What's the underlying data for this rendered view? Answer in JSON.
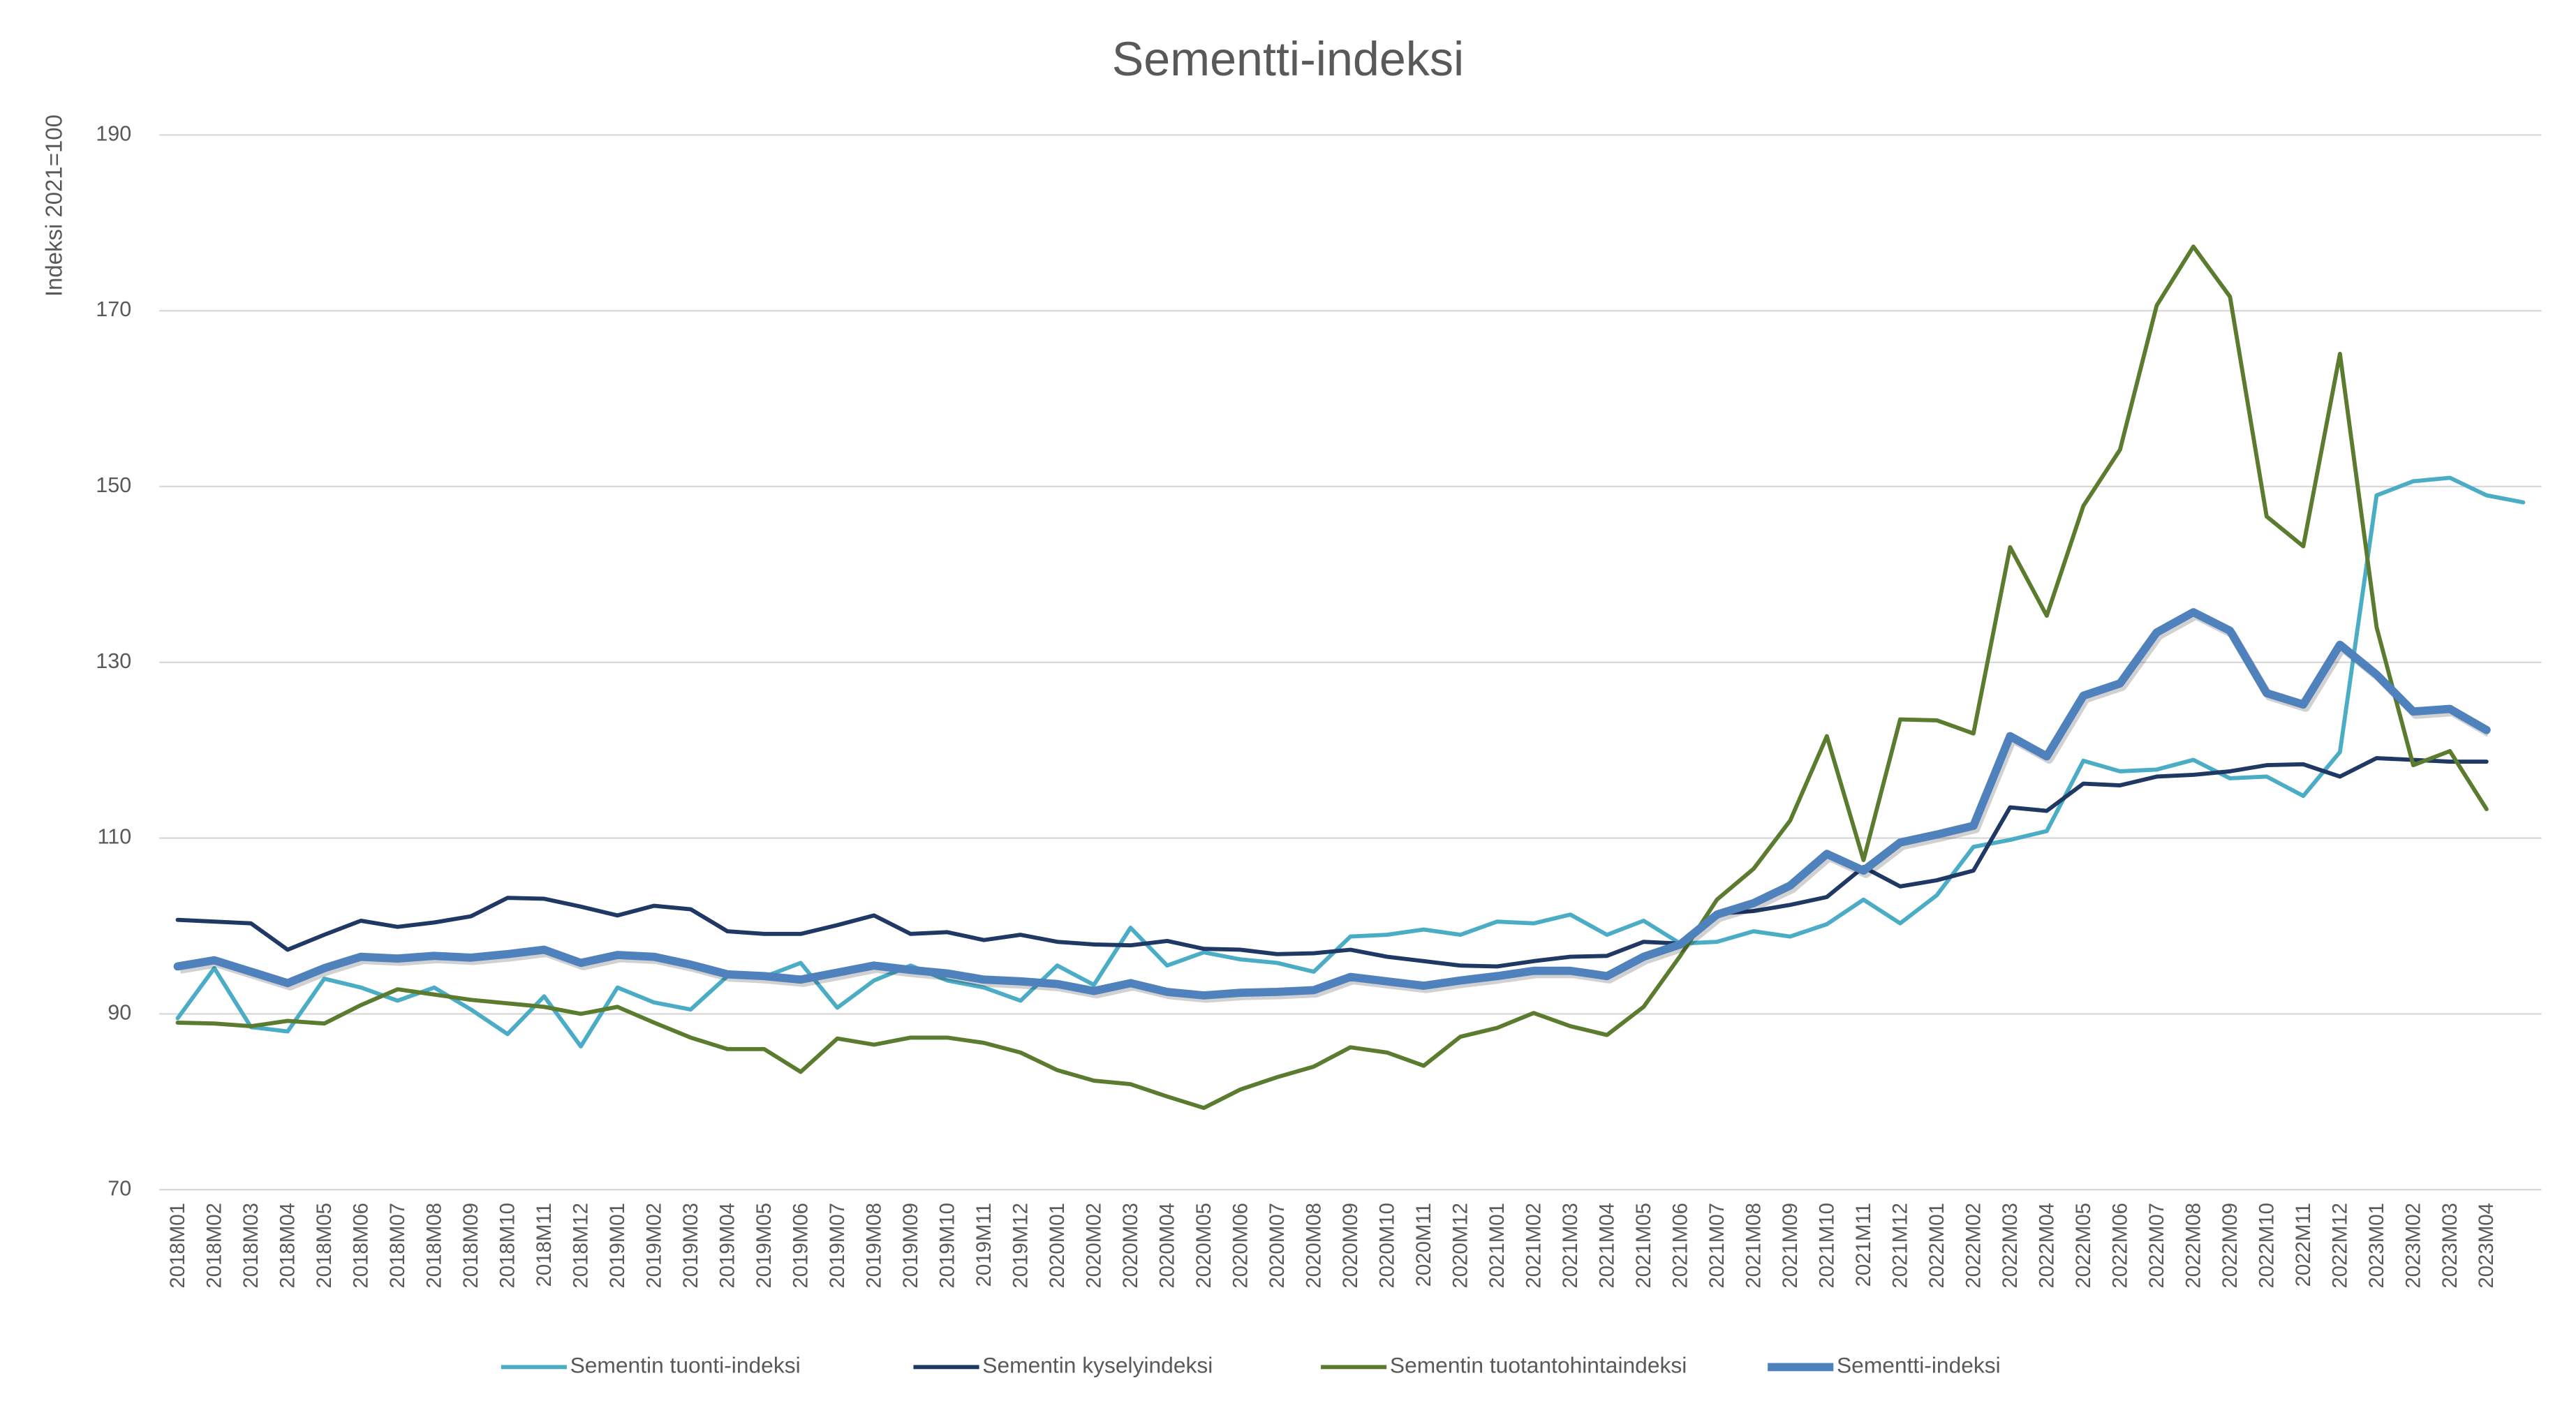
{
  "chart_data": {
    "type": "line",
    "title": "Sementti-indeksi",
    "y_label": "Indeksi 2021=100",
    "categories": [
      "2018M01",
      "2018M02",
      "2018M03",
      "2018M04",
      "2018M05",
      "2018M06",
      "2018M07",
      "2018M08",
      "2018M09",
      "2018M10",
      "2018M11",
      "2018M12",
      "2019M01",
      "2019M02",
      "2019M03",
      "2019M04",
      "2019M05",
      "2019M06",
      "2019M07",
      "2019M08",
      "2019M09",
      "2019M10",
      "2019M11",
      "2019M12",
      "2020M01",
      "2020M02",
      "2020M03",
      "2020M04",
      "2020M05",
      "2020M06",
      "2020M07",
      "2020M08",
      "2020M09",
      "2020M10",
      "2020M11",
      "2020M12",
      "2021M01",
      "2021M02",
      "2021M03",
      "2021M04",
      "2021M05",
      "2021M06",
      "2021M07",
      "2021M08",
      "2021M09",
      "2021M10",
      "2021M11",
      "2021M12",
      "2022M01",
      "2022M02",
      "2022M03",
      "2022M04",
      "2022M05",
      "2022M06",
      "2022M07",
      "2022M08",
      "2022M09",
      "2022M10",
      "2022M11",
      "2022M12",
      "2023M01",
      "2023M02",
      "2023M03",
      "2023M04",
      null
    ],
    "series": [
      {
        "name": "Sementin tuonti-indeksi",
        "color": "#4bacc6",
        "values": [
          89.5,
          95.2,
          88.5,
          88,
          94,
          93,
          91.5,
          93,
          90.5,
          87.7,
          92,
          86.3,
          93,
          91.3,
          90.5,
          94.3,
          94.2,
          95.8,
          90.7,
          93.8,
          95.5,
          93.8,
          93,
          91.5,
          95.5,
          93.3,
          99.8,
          95.5,
          97,
          96.2,
          95.8,
          94.8,
          98.8,
          99,
          99.6,
          99,
          100.5,
          100.3,
          101.3,
          99,
          100.6,
          98,
          98.2,
          99.4,
          98.8,
          100.2,
          103,
          100.3,
          103.5,
          109,
          109.8,
          110.8,
          118.8,
          117.6,
          117.8,
          118.9,
          116.8,
          117,
          114.8,
          119.8,
          149,
          150.6,
          151,
          149,
          148.2
        ]
      },
      {
        "name": "Sementin kyselyindeksi",
        "color": "#203864",
        "values": [
          100.7,
          100.5,
          100.3,
          97.3,
          99,
          100.6,
          99.9,
          100.4,
          101.1,
          103.2,
          103.1,
          102.2,
          101.2,
          102.3,
          101.9,
          99.4,
          99.1,
          99.1,
          100.1,
          101.2,
          99.1,
          99.3,
          98.4,
          99,
          98.2,
          97.9,
          97.8,
          98.3,
          97.4,
          97.3,
          96.8,
          96.9,
          97.3,
          96.5,
          96,
          95.5,
          95.4,
          96,
          96.5,
          96.6,
          98.2,
          98,
          101.4,
          101.7,
          102.4,
          103.3,
          106.7,
          104.5,
          105.2,
          106.3,
          113.5,
          113.1,
          116.2,
          116,
          117,
          117.2,
          117.6,
          118.3,
          118.4,
          117,
          119.1,
          118.9,
          118.7,
          118.7,
          null
        ]
      },
      {
        "name": "Sementin tuotantohintaindeksi",
        "color": "#5b7b2f",
        "values": [
          89,
          88.9,
          88.6,
          89.2,
          88.9,
          91,
          92.8,
          92.2,
          91.6,
          91.2,
          90.8,
          90,
          90.8,
          89,
          87.3,
          86,
          86,
          83.4,
          87.2,
          86.5,
          87.3,
          87.3,
          86.7,
          85.6,
          83.6,
          82.4,
          82,
          80.6,
          79.3,
          81.4,
          82.8,
          84,
          86.2,
          85.6,
          84.1,
          87.4,
          88.4,
          90.1,
          88.6,
          87.6,
          90.8,
          96.6,
          103,
          106.5,
          112,
          121.6,
          107.5,
          123.5,
          123.4,
          121.9,
          143.1,
          135.3,
          147.8,
          154.2,
          170.6,
          177.3,
          171.6,
          146.6,
          143.2,
          165.1,
          134,
          118.3,
          119.9,
          113.3,
          null
        ]
      },
      {
        "name": "Sementti-indeksi",
        "color": "#4f81bd",
        "values": [
          95.4,
          96.1,
          94.8,
          93.5,
          95.2,
          96.5,
          96.3,
          96.6,
          96.4,
          96.8,
          97.3,
          95.8,
          96.7,
          96.5,
          95.6,
          94.5,
          94.3,
          93.9,
          94.7,
          95.5,
          95,
          94.6,
          93.9,
          93.7,
          93.4,
          92.6,
          93.5,
          92.5,
          92.1,
          92.4,
          92.5,
          92.7,
          94.2,
          93.7,
          93.2,
          93.8,
          94.3,
          94.9,
          94.9,
          94.3,
          96.5,
          97.9,
          101.3,
          102.6,
          104.6,
          108.2,
          106.3,
          109.5,
          110.4,
          111.4,
          121.6,
          119.3,
          126.2,
          127.6,
          133.4,
          135.7,
          133.6,
          126.5,
          125.2,
          132,
          128.6,
          124.4,
          124.7,
          122.3,
          null
        ]
      }
    ],
    "ylim": [
      70,
      190
    ],
    "yticks": [
      70,
      90,
      110,
      130,
      150,
      170,
      190
    ],
    "grid": true,
    "legend": "bottom"
  }
}
